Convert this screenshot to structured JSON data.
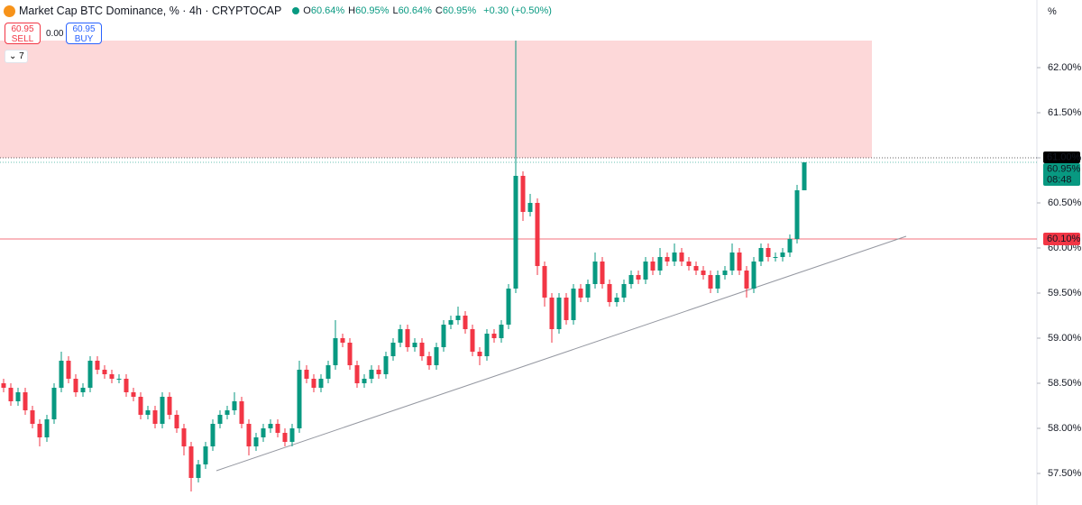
{
  "chart_data": {
    "type": "candlestick",
    "title": "Market Cap BTC Dominance, % · 4h · CRYPTOCAP",
    "ohlc_legend": [
      {
        "label": "O",
        "value": "60.64%"
      },
      {
        "label": "H",
        "value": "60.95%"
      },
      {
        "label": "L",
        "value": "60.64%"
      },
      {
        "label": "C",
        "value": "60.95%"
      }
    ],
    "change": "+0.30 (+0.50%)",
    "trade": {
      "sell_price": "60.95",
      "sell": "SELL",
      "spread": "0.00",
      "buy_price": "60.95",
      "buy": "BUY"
    },
    "indicators_count": "7",
    "axis_unit": "%",
    "up_color": "#089981",
    "down_color": "#f23645",
    "ylim": [
      57.15,
      62.75
    ],
    "yticks": [
      {
        "value": 57.5,
        "label": "57.50%"
      },
      {
        "value": 58.0,
        "label": "58.00%"
      },
      {
        "value": 58.5,
        "label": "58.50%"
      },
      {
        "value": 59.0,
        "label": "59.00%"
      },
      {
        "value": 59.5,
        "label": "59.50%"
      },
      {
        "value": 60.0,
        "label": "60.00%"
      },
      {
        "value": 60.5,
        "label": "60.50%"
      },
      {
        "value": 61.0,
        "label": "61.00%"
      },
      {
        "value": 61.5,
        "label": "61.50%"
      },
      {
        "value": 62.0,
        "label": "62.00%"
      }
    ],
    "zone": {
      "from": 61.0,
      "to": 62.3,
      "color": "#fdd8d9"
    },
    "trendline": {
      "from": 57.53,
      "to": 60.13
    },
    "hline": {
      "value": 60.1,
      "label": "60.10%",
      "color": "#f23645"
    },
    "price_tags": [
      {
        "value": 61.0,
        "label": "61.00%",
        "color": "#000000"
      },
      {
        "value": 60.95,
        "label": "60.95%",
        "countdown": "08:48",
        "color": "#089981"
      }
    ],
    "open": [
      58.5,
      58.45,
      58.3,
      58.4,
      58.2,
      58.05,
      57.9,
      58.1,
      58.45,
      58.75,
      58.55,
      58.4,
      58.45,
      58.75,
      58.65,
      58.6,
      58.55,
      58.55,
      58.4,
      58.35,
      58.15,
      58.2,
      58.05,
      58.35,
      58.15,
      58.0,
      57.8,
      57.45,
      57.6,
      57.8,
      58.05,
      58.15,
      58.2,
      58.3,
      58.05,
      57.8,
      57.9,
      58.0,
      58.05,
      57.95,
      57.85,
      58.0,
      58.65,
      58.55,
      58.45,
      58.55,
      58.7,
      59.0,
      58.95,
      58.7,
      58.5,
      58.55,
      58.65,
      58.6,
      58.8,
      58.95,
      59.1,
      58.9,
      58.95,
      58.8,
      58.7,
      58.9,
      59.15,
      59.2,
      59.25,
      59.1,
      58.85,
      58.8,
      59.05,
      59.0,
      59.15,
      59.55,
      60.8,
      60.4,
      60.5,
      59.8,
      59.45,
      59.1,
      59.45,
      59.2,
      59.55,
      59.45,
      59.6,
      59.85,
      59.6,
      59.4,
      59.45,
      59.6,
      59.7,
      59.65,
      59.85,
      59.75,
      59.9,
      59.85,
      59.95,
      59.85,
      59.8,
      59.75,
      59.7,
      59.55,
      59.7,
      59.75,
      59.95,
      59.75,
      59.55,
      59.85,
      60.0,
      59.9,
      59.9,
      59.95,
      60.1,
      60.64
    ],
    "high": [
      58.55,
      58.5,
      58.45,
      58.45,
      58.25,
      58.1,
      58.15,
      58.5,
      58.85,
      58.8,
      58.6,
      58.5,
      58.8,
      58.8,
      58.7,
      58.65,
      58.6,
      58.6,
      58.45,
      58.4,
      58.25,
      58.25,
      58.4,
      58.4,
      58.2,
      58.05,
      57.85,
      57.65,
      57.85,
      58.1,
      58.2,
      58.25,
      58.4,
      58.35,
      58.1,
      57.95,
      58.05,
      58.1,
      58.1,
      58.0,
      58.05,
      58.75,
      58.7,
      58.6,
      58.6,
      58.75,
      59.2,
      59.05,
      59.0,
      58.75,
      58.6,
      58.7,
      58.7,
      58.85,
      59.0,
      59.15,
      59.15,
      59.0,
      59.0,
      58.85,
      58.95,
      59.2,
      59.25,
      59.35,
      59.3,
      59.15,
      58.9,
      59.1,
      59.1,
      59.2,
      59.6,
      62.3,
      60.85,
      60.6,
      60.55,
      59.85,
      59.5,
      59.5,
      59.5,
      59.6,
      59.6,
      59.65,
      59.95,
      59.9,
      59.65,
      59.5,
      59.65,
      59.75,
      59.75,
      59.9,
      59.9,
      60.0,
      59.95,
      60.05,
      60.0,
      59.9,
      59.85,
      59.8,
      59.75,
      59.75,
      59.8,
      60.05,
      60.0,
      59.8,
      59.9,
      60.05,
      60.05,
      59.95,
      60.0,
      60.15,
      60.7,
      60.95
    ],
    "low": [
      58.4,
      58.25,
      58.25,
      58.15,
      58.0,
      57.8,
      57.85,
      58.05,
      58.4,
      58.5,
      58.35,
      58.35,
      58.4,
      58.6,
      58.55,
      58.5,
      58.5,
      58.35,
      58.3,
      58.1,
      58.1,
      58.0,
      58.0,
      58.1,
      57.95,
      57.7,
      57.3,
      57.4,
      57.55,
      57.75,
      58.0,
      58.1,
      58.15,
      58.0,
      57.7,
      57.75,
      57.85,
      57.95,
      57.9,
      57.8,
      57.8,
      57.95,
      58.5,
      58.4,
      58.4,
      58.5,
      58.65,
      58.9,
      58.65,
      58.45,
      58.45,
      58.5,
      58.55,
      58.55,
      58.75,
      58.9,
      58.85,
      58.85,
      58.75,
      58.65,
      58.65,
      58.85,
      59.1,
      59.15,
      59.05,
      58.8,
      58.7,
      58.75,
      58.95,
      58.95,
      59.1,
      59.5,
      60.3,
      60.35,
      59.7,
      59.35,
      58.95,
      59.05,
      59.15,
      59.15,
      59.4,
      59.4,
      59.55,
      59.55,
      59.35,
      59.35,
      59.4,
      59.55,
      59.6,
      59.6,
      59.7,
      59.7,
      59.8,
      59.8,
      59.8,
      59.75,
      59.7,
      59.65,
      59.5,
      59.5,
      59.65,
      59.7,
      59.7,
      59.45,
      59.5,
      59.8,
      59.85,
      59.85,
      59.85,
      59.9,
      60.05,
      60.64
    ],
    "close": [
      58.45,
      58.3,
      58.4,
      58.2,
      58.05,
      57.9,
      58.1,
      58.45,
      58.75,
      58.55,
      58.4,
      58.45,
      58.75,
      58.65,
      58.6,
      58.55,
      58.55,
      58.4,
      58.35,
      58.15,
      58.2,
      58.05,
      58.35,
      58.15,
      58.0,
      57.8,
      57.45,
      57.6,
      57.8,
      58.05,
      58.15,
      58.2,
      58.3,
      58.05,
      57.8,
      57.9,
      58.0,
      58.05,
      57.95,
      57.85,
      58.0,
      58.65,
      58.55,
      58.45,
      58.55,
      58.7,
      59.0,
      58.95,
      58.7,
      58.5,
      58.55,
      58.65,
      58.6,
      58.8,
      58.95,
      59.1,
      58.9,
      58.95,
      58.8,
      58.7,
      58.9,
      59.15,
      59.2,
      59.25,
      59.1,
      58.85,
      58.8,
      59.05,
      59.0,
      59.15,
      59.55,
      60.8,
      60.4,
      60.5,
      59.8,
      59.45,
      59.1,
      59.45,
      59.2,
      59.55,
      59.45,
      59.6,
      59.85,
      59.6,
      59.4,
      59.45,
      59.6,
      59.7,
      59.65,
      59.85,
      59.75,
      59.9,
      59.85,
      59.95,
      59.85,
      59.8,
      59.75,
      59.7,
      59.55,
      59.7,
      59.75,
      59.95,
      59.75,
      59.55,
      59.85,
      60.0,
      59.9,
      59.9,
      59.95,
      60.1,
      60.64,
      60.95
    ]
  }
}
